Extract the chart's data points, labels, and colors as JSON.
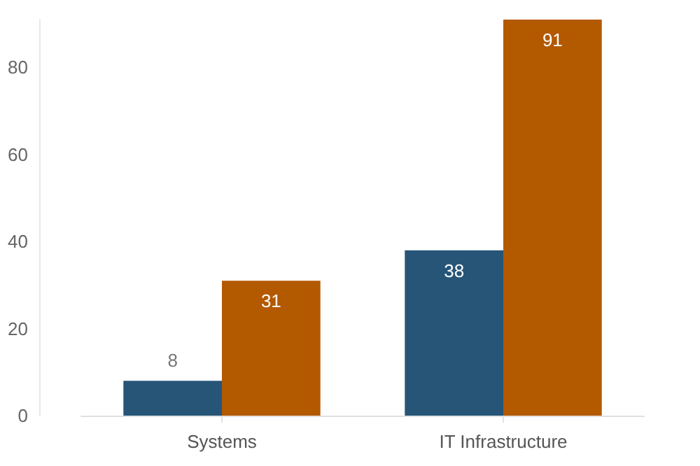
{
  "chart_data": {
    "type": "bar",
    "categories": [
      "Systems",
      "IT Infrastructure"
    ],
    "series": [
      {
        "color": "#265578",
        "values": [
          8,
          38
        ]
      },
      {
        "color": "#b35900",
        "values": [
          31,
          91
        ]
      }
    ],
    "ylim": [
      0,
      91
    ],
    "yticks": [
      0,
      20,
      40,
      60,
      80
    ],
    "grid": false,
    "data_labels": true
  }
}
